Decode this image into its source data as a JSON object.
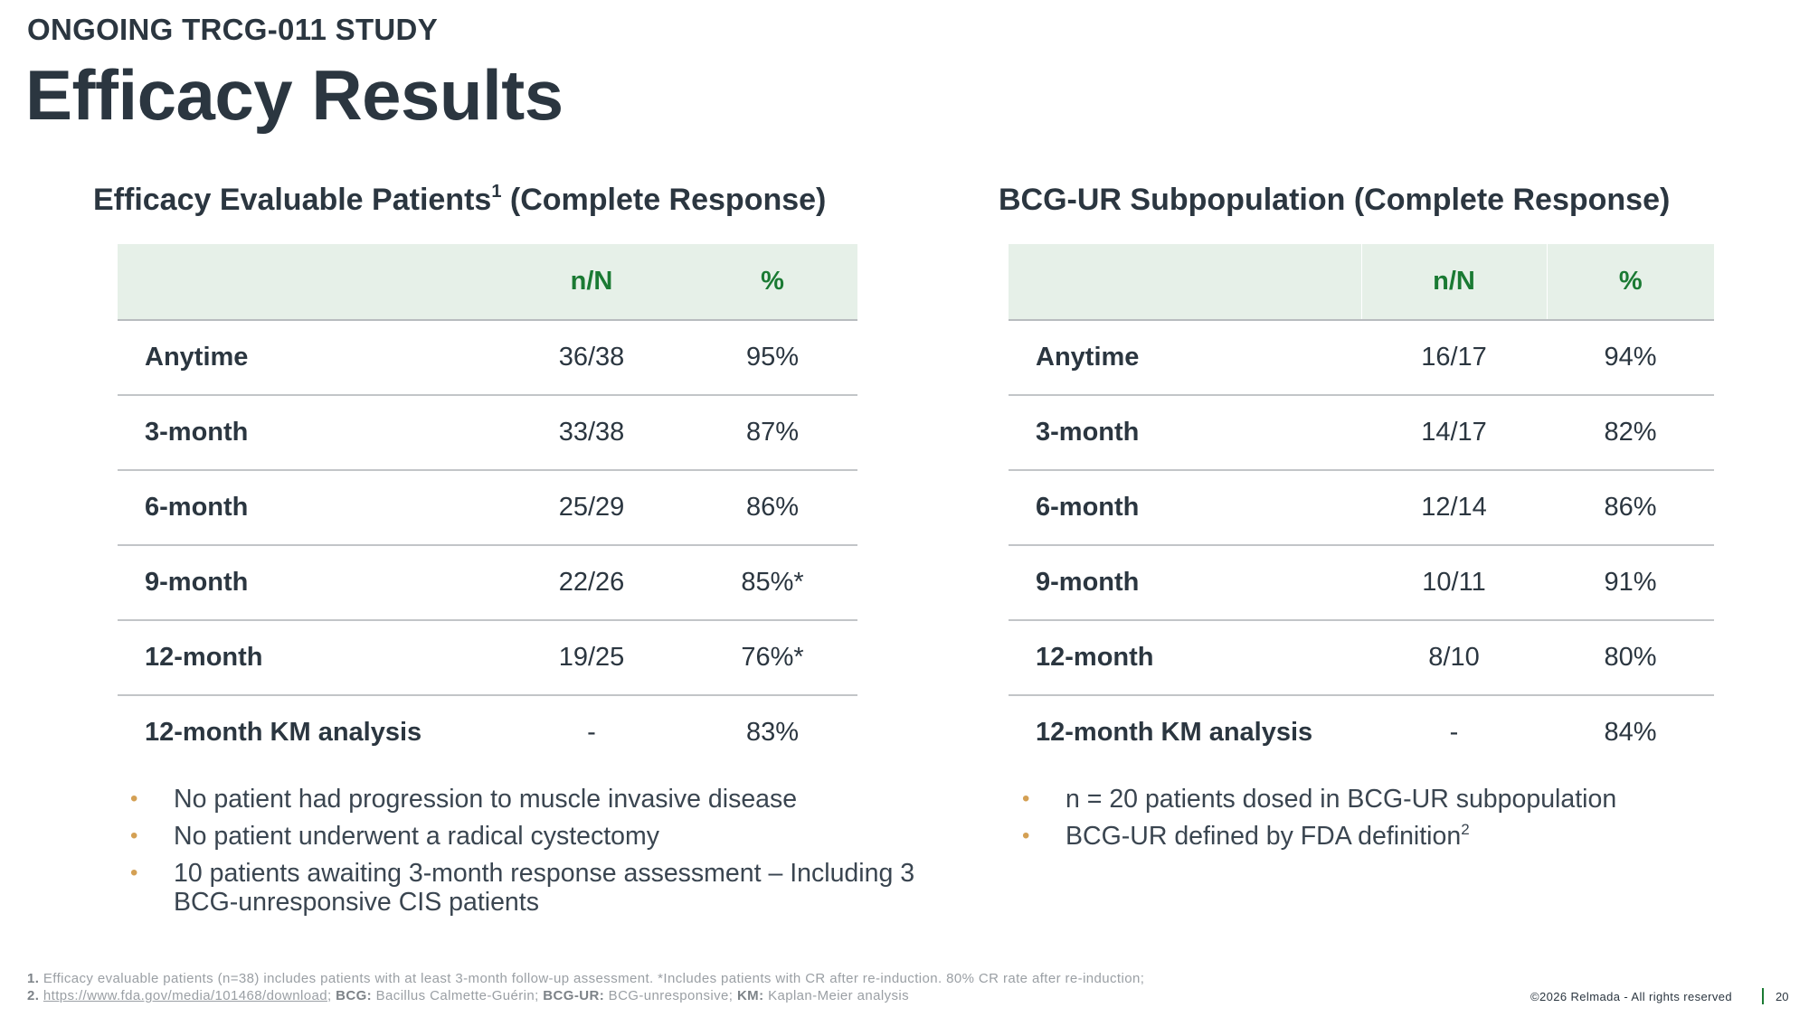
{
  "header": {
    "eyebrow": "ONGOING TRCG-011 STUDY",
    "title": "Efficacy Results"
  },
  "left": {
    "title": "Efficacy Evaluable Patients",
    "title_sup": "1",
    "title_suffix": " (Complete Response)",
    "columns": [
      "",
      "n/N",
      "%"
    ],
    "rows": [
      {
        "label": "Anytime",
        "nN": "36/38",
        "pct": "95%"
      },
      {
        "label": "3-month",
        "nN": "33/38",
        "pct": "87%"
      },
      {
        "label": "6-month",
        "nN": "25/29",
        "pct": "86%"
      },
      {
        "label": "9-month",
        "nN": "22/26",
        "pct": "85%*"
      },
      {
        "label": "12-month",
        "nN": "19/25",
        "pct": "76%*"
      },
      {
        "label": "12-month KM analysis",
        "nN": "-",
        "pct": "83%"
      }
    ],
    "bullets": [
      {
        "text": "No patient had progression to muscle invasive disease"
      },
      {
        "text": "No patient underwent a radical cystectomy"
      },
      {
        "text": "10 patients awaiting 3-month response assessment – Including 3 BCG-unresponsive CIS patients"
      }
    ]
  },
  "right": {
    "title": "BCG-UR Subpopulation (Complete Response)",
    "columns": [
      "",
      "n/N",
      "%"
    ],
    "rows": [
      {
        "label": "Anytime",
        "nN": "16/17",
        "pct": "94%"
      },
      {
        "label": "3-month",
        "nN": "14/17",
        "pct": "82%"
      },
      {
        "label": "6-month",
        "nN": "12/14",
        "pct": "86%"
      },
      {
        "label": "9-month",
        "nN": "10/11",
        "pct": "91%"
      },
      {
        "label": "12-month",
        "nN": "8/10",
        "pct": "80%"
      },
      {
        "label": "12-month KM analysis",
        "nN": "-",
        "pct": "84%"
      }
    ],
    "bullets": [
      {
        "text": "n = 20 patients dosed in BCG-UR subpopulation",
        "sup": ""
      },
      {
        "text": "BCG-UR defined by FDA definition",
        "sup": "2"
      }
    ]
  },
  "footnotes": {
    "n1": "1.",
    "line1": "Efficacy evaluable patients (n=38) includes patients with at least 3-month follow-up assessment. *Includes patients with CR after re-induction. 80% CR rate after re-induction;",
    "n2": "2.",
    "link": "https://www.fda.gov/media/101468/download",
    "sep": ";",
    "bcg_term": "BCG:",
    "bcg_def": "Bacillus Calmette-Guérin;",
    "bcgur_term": "BCG-UR:",
    "bcgur_def": "BCG-unresponsive;",
    "km_term": "KM:",
    "km_def": "Kaplan-Meier analysis"
  },
  "footer": {
    "copyright": "©2026 Relmada - All rights reserved",
    "page": "20"
  },
  "colors": {
    "heading": "#2b3640",
    "accent_green": "#1a7a33",
    "header_fill": "#e6f0e8",
    "bullet": "#d4a054"
  }
}
